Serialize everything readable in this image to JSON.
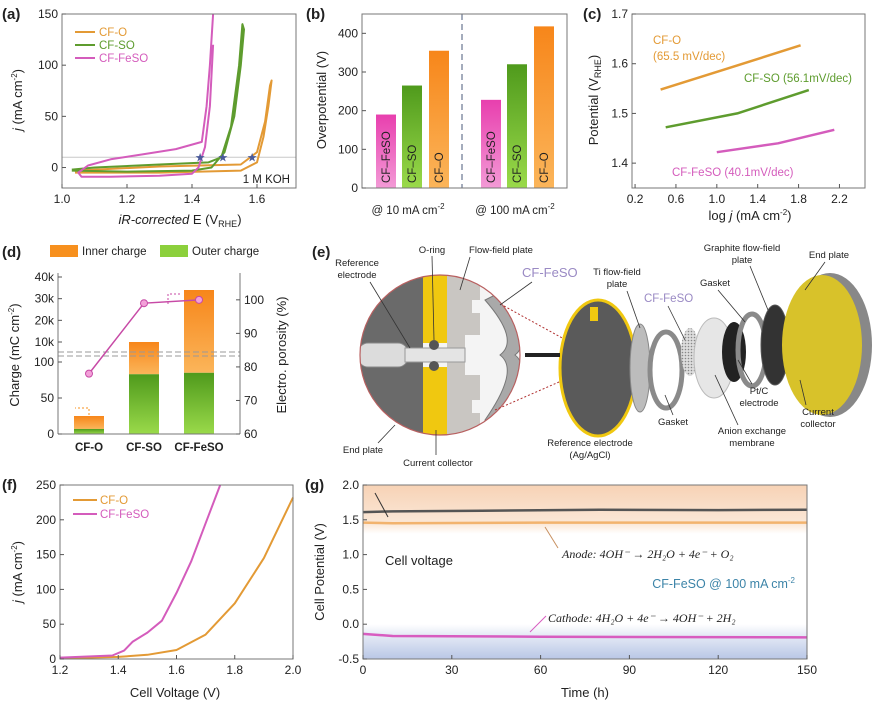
{
  "panel_labels": [
    "(a)",
    "(b)",
    "(c)",
    "(d)",
    "(e)",
    "(f)",
    "(g)"
  ],
  "colors": {
    "cf_o": "#e39a35",
    "cf_so": "#5e9c2e",
    "cf_feso": "#d45cbc",
    "bar_pink": "#ea4fb6",
    "bar_green": "#6cbd2b",
    "bar_orange": "#f7901e",
    "cell": "#555555"
  },
  "chart_data": [
    {
      "panel": "a",
      "type": "line",
      "xlabel": {
        "italic": "iR-corrected",
        "main": " E (V",
        "sub": "RHE",
        "end": ")"
      },
      "ylabel": {
        "italic": "j",
        "main": " (mA cm",
        "sup": "-2",
        "end": ")"
      },
      "xlim": [
        1.0,
        1.72
      ],
      "ylim": [
        -20,
        150
      ],
      "xticks": [
        "1.0",
        "1.2",
        "1.4",
        "1.6"
      ],
      "yticks": [
        "0",
        "50",
        "100",
        "150"
      ],
      "annotation": "1 M KOH",
      "reference_line_y": 10,
      "markers": {
        "shape": "star",
        "points": [
          [
            1.425,
            10
          ],
          [
            1.495,
            10
          ],
          [
            1.585,
            10
          ]
        ]
      },
      "legend": "top-left",
      "series": [
        {
          "name": "CF-O",
          "points": [
            [
              1.04,
              -5
            ],
            [
              1.3,
              -5
            ],
            [
              1.55,
              -3
            ],
            [
              1.6,
              5
            ],
            [
              1.62,
              30
            ],
            [
              1.635,
              60
            ],
            [
              1.645,
              85
            ],
            [
              1.64,
              80
            ],
            [
              1.625,
              45
            ],
            [
              1.6,
              15
            ],
            [
              1.55,
              3
            ],
            [
              1.3,
              1
            ],
            [
              1.04,
              -3
            ]
          ]
        },
        {
          "name": "CF-SO",
          "points": [
            [
              1.03,
              -3
            ],
            [
              1.2,
              -4
            ],
            [
              1.4,
              -3
            ],
            [
              1.46,
              0
            ],
            [
              1.5,
              15
            ],
            [
              1.53,
              50
            ],
            [
              1.55,
              100
            ],
            [
              1.56,
              135
            ],
            [
              1.555,
              140
            ],
            [
              1.545,
              100
            ],
            [
              1.52,
              40
            ],
            [
              1.49,
              10
            ],
            [
              1.45,
              5
            ],
            [
              1.3,
              3
            ],
            [
              1.1,
              0
            ],
            [
              1.03,
              -2
            ]
          ]
        },
        {
          "name": "CF-FeSO",
          "points": [
            [
              1.465,
              150
            ],
            [
              1.455,
              100
            ],
            [
              1.445,
              60
            ],
            [
              1.43,
              25
            ],
            [
              1.35,
              18
            ],
            [
              1.25,
              13
            ],
            [
              1.15,
              8
            ],
            [
              1.08,
              2
            ],
            [
              1.05,
              -5
            ],
            [
              1.06,
              -9
            ],
            [
              1.15,
              -9
            ],
            [
              1.3,
              -8
            ],
            [
              1.4,
              -6
            ],
            [
              1.42,
              0
            ],
            [
              1.44,
              20
            ],
            [
              1.455,
              60
            ],
            [
              1.465,
              120
            ]
          ]
        }
      ]
    },
    {
      "panel": "b",
      "type": "bar",
      "ylabel": "Overpotential (V)",
      "ylim": [
        0,
        450
      ],
      "yticks": [
        "0",
        "100",
        "200",
        "300",
        "400"
      ],
      "groups": [
        "@ 10 mA cm",
        "@ 100 mA cm"
      ],
      "group_sup": "-2",
      "bar_labels": [
        "CF–FeSO",
        "CF–SO",
        "CF–O"
      ],
      "values": [
        [
          190,
          265,
          355
        ],
        [
          228,
          320,
          418
        ]
      ]
    },
    {
      "panel": "c",
      "type": "line",
      "xlabel": {
        "main": "log ",
        "italic": "j",
        "rest": " (mA cm",
        "sup": "-2",
        "end": ")"
      },
      "ylabel": {
        "main": "Potential (V",
        "sub": "RHE",
        "end": ")"
      },
      "xlim": [
        0.17,
        2.45
      ],
      "ylim": [
        1.35,
        1.7
      ],
      "xticks": [
        "0.2",
        "0.6",
        "1.0",
        "1.4",
        "1.8",
        "2.2"
      ],
      "yticks": [
        "1.4",
        "1.5",
        "1.6",
        "1.7"
      ],
      "series": [
        {
          "name": "CF-O",
          "slope_label": "(65.5 mV/dec)",
          "points": [
            [
              0.45,
              1.548
            ],
            [
              1.1,
              1.59
            ],
            [
              1.82,
              1.637
            ]
          ]
        },
        {
          "name": "CF-SO",
          "slope_label": "(56.1mV/dec)",
          "points": [
            [
              0.5,
              1.472
            ],
            [
              1.2,
              1.5
            ],
            [
              1.9,
              1.547
            ]
          ]
        },
        {
          "name": "CF-FeSO",
          "slope_label": "(40.1mV/dec)",
          "points": [
            [
              1.0,
              1.422
            ],
            [
              1.6,
              1.44
            ],
            [
              2.15,
              1.467
            ]
          ]
        }
      ]
    },
    {
      "panel": "d",
      "type": "bar",
      "categories": [
        "CF-O",
        "CF-SO",
        "CF-FeSO"
      ],
      "ylabel": {
        "main": "Charge (mC cm",
        "sup": "-2",
        "end": ")"
      },
      "y2label": "Electro. porosity (%)",
      "yticks_lower": [
        "0",
        "50",
        "100"
      ],
      "yticks_upper": [
        "10k",
        "20k",
        "30k",
        "40k"
      ],
      "y_break": [
        100,
        10000
      ],
      "y2lim": [
        60,
        108
      ],
      "y2ticks": [
        "60",
        "70",
        "80",
        "90",
        "100"
      ],
      "legend": [
        "Inner charge",
        "Outer charge"
      ],
      "outer_charge": [
        7,
        83,
        85
      ],
      "total_charge": [
        25,
        10000,
        34000
      ],
      "porosity": [
        78,
        99,
        100
      ]
    },
    {
      "panel": "f",
      "type": "line",
      "xlabel": "Cell Voltage (V)",
      "ylabel": {
        "italic": "j",
        "main": " (mA cm",
        "sup": "-2",
        "end": ")"
      },
      "xlim": [
        1.2,
        2.0
      ],
      "ylim": [
        0,
        250
      ],
      "xticks": [
        "1.2",
        "1.4",
        "1.6",
        "1.8",
        "2.0"
      ],
      "yticks": [
        "0",
        "50",
        "100",
        "150",
        "200",
        "250"
      ],
      "legend": "top-left",
      "series": [
        {
          "name": "CF-O",
          "points": [
            [
              1.2,
              1
            ],
            [
              1.4,
              3
            ],
            [
              1.5,
              6
            ],
            [
              1.6,
              13
            ],
            [
              1.7,
              35
            ],
            [
              1.8,
              80
            ],
            [
              1.9,
              145
            ],
            [
              2.0,
              232
            ]
          ]
        },
        {
          "name": "CF-FeSO",
          "points": [
            [
              1.2,
              2
            ],
            [
              1.38,
              5
            ],
            [
              1.42,
              12
            ],
            [
              1.45,
              25
            ],
            [
              1.5,
              38
            ],
            [
              1.55,
              55
            ],
            [
              1.6,
              95
            ],
            [
              1.65,
              140
            ],
            [
              1.7,
              195
            ],
            [
              1.75,
              250
            ]
          ]
        }
      ]
    },
    {
      "panel": "g",
      "type": "line",
      "xlabel": "Time (h)",
      "ylabel": "Cell Potential (V)",
      "xlim": [
        0,
        150
      ],
      "ylim": [
        -0.5,
        2.0
      ],
      "xticks": [
        "0",
        "30",
        "60",
        "90",
        "120",
        "150"
      ],
      "yticks": [
        "-0.5",
        "0.0",
        "0.5",
        "1.0",
        "1.5",
        "2.0"
      ],
      "condition": {
        "main": "CF-FeSO @ 100 mA cm",
        "sup": "-2"
      },
      "series": [
        {
          "name": "Cell voltage",
          "points": [
            [
              0,
              1.61
            ],
            [
              10,
              1.62
            ],
            [
              40,
              1.63
            ],
            [
              80,
              1.645
            ],
            [
              120,
              1.64
            ],
            [
              150,
              1.645
            ]
          ]
        },
        {
          "name": "Anode",
          "equation": "Anode: 4OH⁻ → 2H₂O  +  4e⁻  +  O₂",
          "points": [
            [
              0,
              1.46
            ],
            [
              10,
              1.45
            ],
            [
              60,
              1.46
            ],
            [
              150,
              1.46
            ]
          ]
        },
        {
          "name": "Cathode",
          "equation": "Cathode: 4H₂O  +  4e⁻ → 4OH⁻  +  2H₂",
          "points": [
            [
              0,
              -0.14
            ],
            [
              10,
              -0.17
            ],
            [
              60,
              -0.18
            ],
            [
              150,
              -0.19
            ]
          ]
        }
      ]
    }
  ],
  "diagram_e": {
    "labels": {
      "reference_electrode": [
        "Reference",
        "electrode"
      ],
      "o_ring": "O-ring",
      "flow_field_plate": "Flow-field plate",
      "cf_feso_zoom": "CF-FeSO",
      "end_plate_left": "End plate",
      "current_collector_left": "Current collector",
      "reference_electrode_agcl": [
        "Reference electrode",
        "(Ag/AgCl)"
      ],
      "ti_flow_field_plate": [
        "Ti flow-field",
        "plate"
      ],
      "cf_feso": "CF-FeSO",
      "gasket_left": "Gasket",
      "anion_membrane": [
        "Anion exchange",
        "membrane"
      ],
      "ptc_electrode": [
        "Pt/C",
        "electrode"
      ],
      "gasket_right": "Gasket",
      "graphite_plate": [
        "Graphite flow-field",
        "plate"
      ],
      "end_plate_right": "End plate",
      "current_collector_right": [
        "Current",
        "collector"
      ]
    }
  }
}
